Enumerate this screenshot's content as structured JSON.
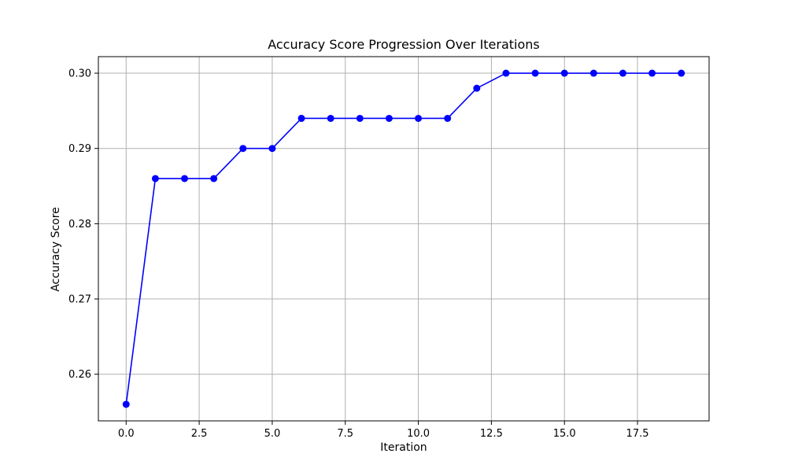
{
  "chart_data": {
    "type": "line",
    "title": "Accuracy Score Progression Over Iterations",
    "xlabel": "Iteration",
    "ylabel": "Accuracy Score",
    "x": [
      0,
      1,
      2,
      3,
      4,
      5,
      6,
      7,
      8,
      9,
      10,
      11,
      12,
      13,
      14,
      15,
      16,
      17,
      18,
      19
    ],
    "series": [
      {
        "values": [
          0.256,
          0.286,
          0.286,
          0.286,
          0.29,
          0.29,
          0.294,
          0.294,
          0.294,
          0.294,
          0.294,
          0.294,
          0.298,
          0.3,
          0.3,
          0.3,
          0.3,
          0.3,
          0.3,
          0.3
        ],
        "color": "#0000ff",
        "marker": "circle"
      }
    ],
    "xlim": [
      -0.95,
      19.95
    ],
    "ylim": [
      0.2538,
      0.3022
    ],
    "xticks": [
      0.0,
      2.5,
      5.0,
      7.5,
      10.0,
      12.5,
      15.0,
      17.5
    ],
    "xtick_labels": [
      "0.0",
      "2.5",
      "5.0",
      "7.5",
      "10.0",
      "12.5",
      "15.0",
      "17.5"
    ],
    "yticks": [
      0.26,
      0.27,
      0.28,
      0.29,
      0.3
    ],
    "ytick_labels": [
      "0.26",
      "0.27",
      "0.28",
      "0.29",
      "0.30"
    ],
    "grid": true,
    "grid_color": "#b0b0b0"
  }
}
